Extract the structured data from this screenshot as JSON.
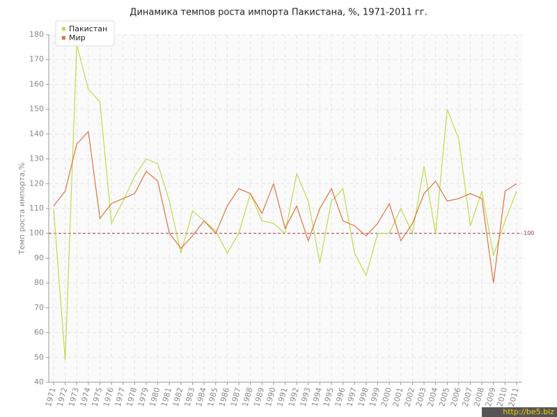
{
  "chart_data": {
    "type": "line",
    "title": "Динамика темпов роста импорта Пакистана, %, 1971-2011 гг.",
    "y_label": "Темп роста импорта,%",
    "categories": [
      "1971",
      "1972",
      "1973",
      "1974",
      "1975",
      "1976",
      "1977",
      "1978",
      "1979",
      "1980",
      "1981",
      "1982",
      "1983",
      "1984",
      "1985",
      "1986",
      "1987",
      "1988",
      "1989",
      "1990",
      "1991",
      "1992",
      "1993",
      "1994",
      "1995",
      "1996",
      "1997",
      "1998",
      "1999",
      "2000",
      "2001",
      "2002",
      "2003",
      "2004",
      "2005",
      "2006",
      "2007",
      "2008",
      "2009",
      "2010",
      "2011"
    ],
    "series": [
      {
        "name": "Пакистан",
        "color": "#bcdc4a",
        "values": [
          110,
          49,
          176,
          158,
          153,
          104,
          113,
          123,
          130,
          128,
          113,
          92,
          109,
          105,
          101,
          92,
          100,
          116,
          105,
          104,
          100,
          124,
          113,
          88,
          113,
          118,
          92,
          83,
          100,
          100,
          110,
          100,
          127,
          100,
          150,
          138,
          103,
          117,
          91,
          105,
          117
        ]
      },
      {
        "name": "Мир",
        "color": "#e0703f",
        "values": [
          111,
          117,
          136,
          141,
          106,
          112,
          114,
          116,
          125,
          121,
          100,
          94,
          99,
          105,
          100,
          111,
          118,
          116,
          108,
          120,
          102,
          111,
          97,
          110,
          118,
          105,
          103,
          99,
          104,
          112,
          97,
          104,
          116,
          121,
          113,
          114,
          116,
          114,
          80,
          117,
          120
        ]
      }
    ],
    "ylim": [
      40,
      180
    ],
    "yticks": [
      40,
      50,
      60,
      70,
      80,
      90,
      100,
      110,
      120,
      130,
      140,
      150,
      160,
      170,
      180
    ],
    "reference_line": 100,
    "reference_color": "#a0304a",
    "grid": true,
    "legend": "top-left",
    "watermark": "http://be5.biz"
  }
}
